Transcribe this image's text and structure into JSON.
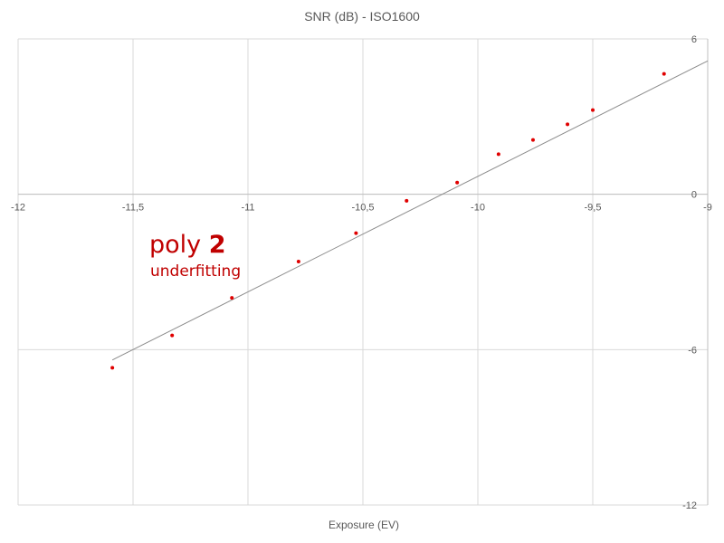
{
  "chart_data": {
    "type": "scatter",
    "title": "SNR (dB) - ISO1600",
    "xlabel": "Exposure (EV)",
    "ylabel": "",
    "xlim": [
      -12,
      -9
    ],
    "ylim": [
      -12,
      6
    ],
    "x_ticks": [
      -12,
      -11.5,
      -11,
      -10.5,
      -10,
      -9.5,
      -9
    ],
    "x_tick_labels": [
      "-12",
      "-11,5",
      "-11",
      "-10,5",
      "-10",
      "-9,5",
      "-9"
    ],
    "y_ticks": [
      6,
      0,
      -6,
      -12
    ],
    "y_tick_labels": [
      "6",
      "0",
      "-6",
      "-12"
    ],
    "y_axis_side": "right",
    "grid": true,
    "series": [
      {
        "color": "#e00000",
        "points": [
          {
            "x": -11.59,
            "y": -6.7
          },
          {
            "x": -11.33,
            "y": -5.45
          },
          {
            "x": -11.07,
            "y": -4.0
          },
          {
            "x": -10.78,
            "y": -2.6
          },
          {
            "x": -10.53,
            "y": -1.5
          },
          {
            "x": -10.31,
            "y": -0.25
          },
          {
            "x": -10.09,
            "y": 0.45
          },
          {
            "x": -9.91,
            "y": 1.55
          },
          {
            "x": -9.76,
            "y": 2.1
          },
          {
            "x": -9.61,
            "y": 2.7
          },
          {
            "x": -9.5,
            "y": 3.25
          },
          {
            "x": -9.19,
            "y": 4.65
          }
        ]
      }
    ],
    "trendline": {
      "color": "#8c8c8c",
      "x": [
        -11.59,
        -9.0
      ],
      "y": [
        -6.4,
        5.15
      ]
    },
    "annotation": {
      "prefix": "poly ",
      "degree": "2",
      "note": "underfitting",
      "color": "#c00000"
    }
  }
}
